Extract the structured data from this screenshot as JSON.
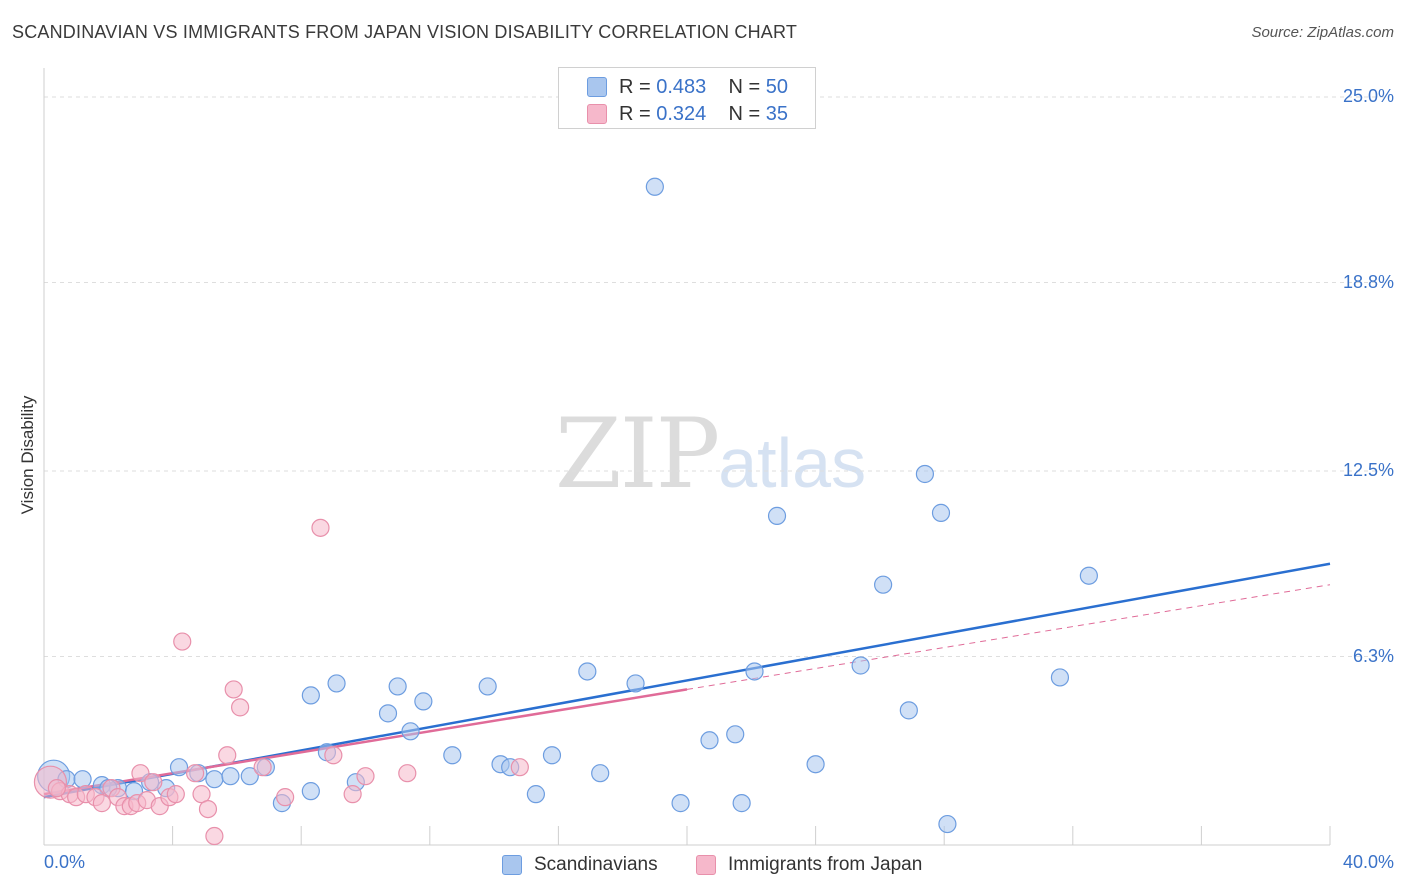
{
  "header": {
    "title": "SCANDINAVIAN VS IMMIGRANTS FROM JAPAN VISION DISABILITY CORRELATION CHART",
    "source": "Source: ZipAtlas.com"
  },
  "watermark": {
    "zip": "ZIP",
    "atlas": "atlas"
  },
  "legend_top": {
    "rows": [
      {
        "r_label": "R =",
        "r_value": "0.483",
        "n_label": "N =",
        "n_value": "50",
        "color": "#a9c6ee"
      },
      {
        "r_label": "R =",
        "r_value": "0.324",
        "n_label": "N =",
        "n_value": "35",
        "color": "#f6b8cb"
      }
    ]
  },
  "chart_data": {
    "type": "scatter",
    "title": "SCANDINAVIAN VS IMMIGRANTS FROM JAPAN VISION DISABILITY CORRELATION CHART",
    "xlabel": "",
    "ylabel": "Vision Disability",
    "xlim": [
      0,
      40
    ],
    "ylim": [
      0,
      25.0
    ],
    "x_tick_labels": [
      "0.0%",
      "40.0%"
    ],
    "y_tick_labels": [
      "25.0%",
      "18.8%",
      "12.5%",
      "6.3%"
    ],
    "y_ticks": [
      25.0,
      18.8,
      12.5,
      6.3
    ],
    "grid": true,
    "legend_position": "bottom",
    "series": [
      {
        "name": "Scandinavians",
        "color": "#a9c6ee",
        "stroke": "#6d9de0",
        "trend_color": "#2a6fd0",
        "trend": {
          "x0": 0,
          "y0": 1.6,
          "x1": 40,
          "y1": 9.4
        },
        "points": [
          {
            "x": 0.3,
            "y": 2.3,
            "big": true
          },
          {
            "x": 0.7,
            "y": 2.2
          },
          {
            "x": 1.2,
            "y": 2.2
          },
          {
            "x": 1.8,
            "y": 2.0
          },
          {
            "x": 2.3,
            "y": 1.9
          },
          {
            "x": 2.8,
            "y": 1.8
          },
          {
            "x": 3.3,
            "y": 2.1
          },
          {
            "x": 3.8,
            "y": 1.9
          },
          {
            "x": 4.2,
            "y": 2.6
          },
          {
            "x": 4.8,
            "y": 2.4
          },
          {
            "x": 5.3,
            "y": 2.2
          },
          {
            "x": 5.8,
            "y": 2.3
          },
          {
            "x": 6.4,
            "y": 2.3
          },
          {
            "x": 6.9,
            "y": 2.6
          },
          {
            "x": 7.4,
            "y": 1.4
          },
          {
            "x": 8.3,
            "y": 1.8
          },
          {
            "x": 8.3,
            "y": 5.0
          },
          {
            "x": 8.8,
            "y": 3.1
          },
          {
            "x": 9.1,
            "y": 5.4
          },
          {
            "x": 9.7,
            "y": 2.1
          },
          {
            "x": 10.7,
            "y": 4.4
          },
          {
            "x": 11.0,
            "y": 5.3
          },
          {
            "x": 11.4,
            "y": 3.8
          },
          {
            "x": 11.8,
            "y": 4.8
          },
          {
            "x": 12.7,
            "y": 3.0
          },
          {
            "x": 13.8,
            "y": 5.3
          },
          {
            "x": 14.2,
            "y": 2.7
          },
          {
            "x": 14.5,
            "y": 2.6
          },
          {
            "x": 15.3,
            "y": 1.7
          },
          {
            "x": 15.8,
            "y": 3.0
          },
          {
            "x": 16.9,
            "y": 5.8
          },
          {
            "x": 17.3,
            "y": 2.4
          },
          {
            "x": 18.4,
            "y": 5.4
          },
          {
            "x": 19.0,
            "y": 22.0
          },
          {
            "x": 19.8,
            "y": 1.4
          },
          {
            "x": 20.7,
            "y": 3.5
          },
          {
            "x": 21.5,
            "y": 3.7
          },
          {
            "x": 21.7,
            "y": 1.4
          },
          {
            "x": 22.1,
            "y": 5.8
          },
          {
            "x": 22.8,
            "y": 11.0
          },
          {
            "x": 24.0,
            "y": 2.7
          },
          {
            "x": 25.4,
            "y": 6.0
          },
          {
            "x": 26.1,
            "y": 8.7
          },
          {
            "x": 26.9,
            "y": 4.5
          },
          {
            "x": 27.4,
            "y": 12.4
          },
          {
            "x": 27.9,
            "y": 11.1
          },
          {
            "x": 28.1,
            "y": 0.7
          },
          {
            "x": 31.6,
            "y": 5.6
          },
          {
            "x": 32.5,
            "y": 9.0
          },
          {
            "x": 2.0,
            "y": 1.9
          }
        ]
      },
      {
        "name": "Immigrants from Japan",
        "color": "#f6b8cb",
        "stroke": "#e890ab",
        "trend_color": "#e06b98",
        "trend": {
          "x0": 0,
          "y0": 1.7,
          "x1": 20,
          "y1": 5.2
        },
        "trend_dashed": {
          "x0": 20,
          "y0": 5.2,
          "x1": 40,
          "y1": 8.7
        },
        "points": [
          {
            "x": 0.2,
            "y": 2.1,
            "big": true
          },
          {
            "x": 0.5,
            "y": 1.8
          },
          {
            "x": 0.8,
            "y": 1.7
          },
          {
            "x": 1.0,
            "y": 1.6
          },
          {
            "x": 1.3,
            "y": 1.7
          },
          {
            "x": 1.6,
            "y": 1.6
          },
          {
            "x": 1.8,
            "y": 1.4
          },
          {
            "x": 2.1,
            "y": 1.9
          },
          {
            "x": 2.3,
            "y": 1.6
          },
          {
            "x": 2.5,
            "y": 1.3
          },
          {
            "x": 2.7,
            "y": 1.3
          },
          {
            "x": 2.9,
            "y": 1.4
          },
          {
            "x": 3.0,
            "y": 2.4
          },
          {
            "x": 3.2,
            "y": 1.5
          },
          {
            "x": 3.4,
            "y": 2.1
          },
          {
            "x": 3.6,
            "y": 1.3
          },
          {
            "x": 3.9,
            "y": 1.6
          },
          {
            "x": 4.1,
            "y": 1.7
          },
          {
            "x": 4.3,
            "y": 6.8
          },
          {
            "x": 4.7,
            "y": 2.4
          },
          {
            "x": 4.9,
            "y": 1.7
          },
          {
            "x": 5.1,
            "y": 1.2
          },
          {
            "x": 5.3,
            "y": 0.3
          },
          {
            "x": 5.7,
            "y": 3.0
          },
          {
            "x": 5.9,
            "y": 5.2
          },
          {
            "x": 6.1,
            "y": 4.6
          },
          {
            "x": 6.8,
            "y": 2.6
          },
          {
            "x": 7.5,
            "y": 1.6
          },
          {
            "x": 8.6,
            "y": 10.6
          },
          {
            "x": 9.0,
            "y": 3.0
          },
          {
            "x": 9.6,
            "y": 1.7
          },
          {
            "x": 10.0,
            "y": 2.3
          },
          {
            "x": 11.3,
            "y": 2.4
          },
          {
            "x": 14.8,
            "y": 2.6
          },
          {
            "x": 0.4,
            "y": 1.9
          }
        ]
      }
    ]
  },
  "axes": {
    "x_left_label": "0.0%",
    "x_right_label": "40.0%",
    "y_title": "Vision Disability"
  },
  "legend_bottom": {
    "items": [
      {
        "label": "Scandinavians",
        "color": "#a9c6ee"
      },
      {
        "label": "Immigrants from Japan",
        "color": "#f6b8cb"
      }
    ]
  }
}
